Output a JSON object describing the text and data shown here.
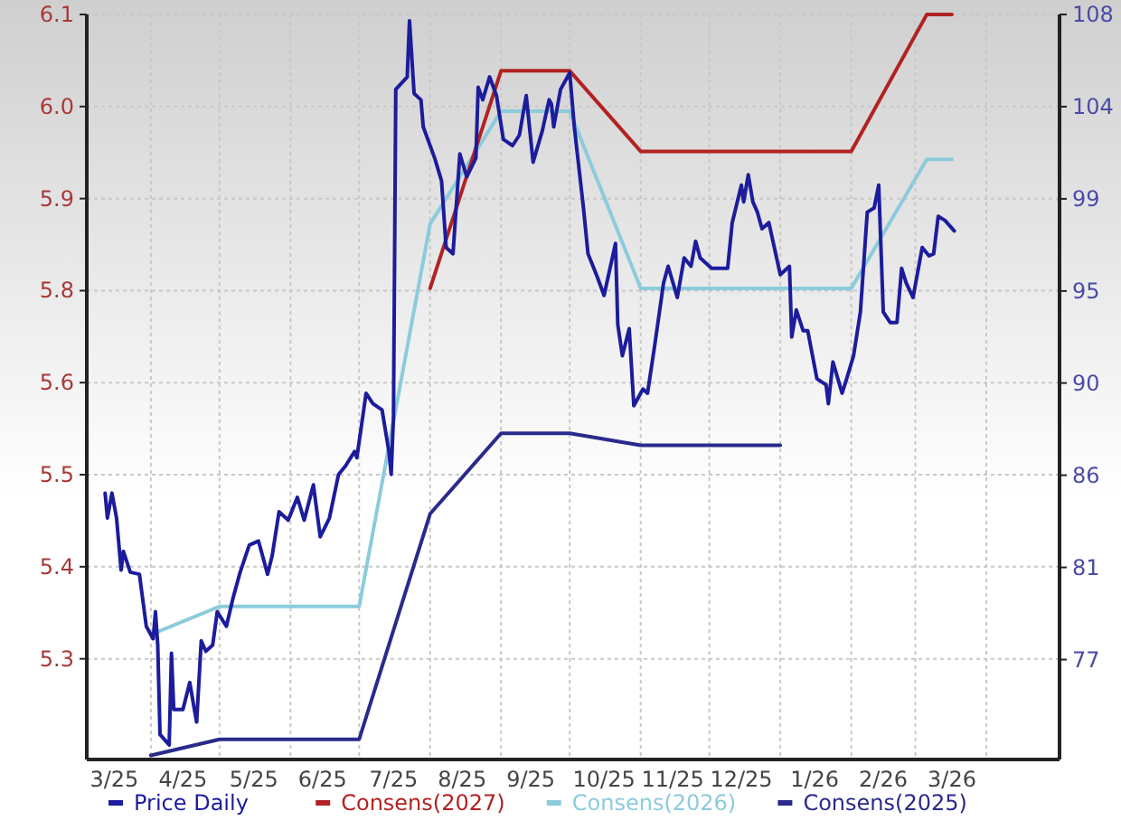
{
  "chart_data": {
    "type": "line",
    "xlim": [
      "2025-03-04",
      "2026-05-03"
    ],
    "xticks": [
      {
        "value": "2025-03-16",
        "label": "3/25"
      },
      {
        "value": "2025-04-01",
        "label": null
      },
      {
        "value": "2025-04-15",
        "label": "4/25"
      },
      {
        "value": "2025-05-01",
        "label": null
      },
      {
        "value": "2025-05-16",
        "label": "5/25"
      },
      {
        "value": "2025-06-01",
        "label": null
      },
      {
        "value": "2025-06-15",
        "label": "6/25"
      },
      {
        "value": "2025-07-01",
        "label": null
      },
      {
        "value": "2025-07-16",
        "label": "7/25"
      },
      {
        "value": "2025-08-01",
        "label": null
      },
      {
        "value": "2025-08-15",
        "label": "8/25"
      },
      {
        "value": "2025-09-01",
        "label": null
      },
      {
        "value": "2025-09-14",
        "label": "9/25"
      },
      {
        "value": "2025-10-01",
        "label": null
      },
      {
        "value": "2025-10-16",
        "label": "10/25"
      },
      {
        "value": "2025-11-01",
        "label": null
      },
      {
        "value": "2025-11-15",
        "label": "11/25"
      },
      {
        "value": "2025-12-01",
        "label": null
      },
      {
        "value": "2025-12-15",
        "label": "12/25"
      },
      {
        "value": "2026-01-01",
        "label": null
      },
      {
        "value": "2026-01-16",
        "label": "1/26"
      },
      {
        "value": "2026-02-01",
        "label": null
      },
      {
        "value": "2026-02-15",
        "label": "2/26"
      },
      {
        "value": "2026-03-01",
        "label": null
      },
      {
        "value": "2026-03-17",
        "label": "3/26"
      },
      {
        "value": "2026-04-01",
        "label": null
      }
    ],
    "ylim": [
      5.175,
      6.1
    ],
    "yticks": [
      5.3,
      {
        "value": 5.4143,
        "label": "5.4"
      },
      {
        "value": 5.5286,
        "label": "5.5"
      },
      {
        "value": 5.6429,
        "label": "5.6"
      },
      {
        "value": 5.7571,
        "label": "5.8"
      },
      {
        "value": 5.8714,
        "label": "5.9"
      },
      {
        "value": 5.9857,
        "label": "6.0"
      },
      6.1
    ],
    "y2lim": [
      72.2,
      108
    ],
    "y2ticks": [
      77,
      {
        "value": 81.43,
        "label": "81"
      },
      {
        "value": 85.86,
        "label": "86"
      },
      {
        "value": 90.29,
        "label": "90"
      },
      {
        "value": 94.71,
        "label": "95"
      },
      {
        "value": 99.14,
        "label": "99"
      },
      {
        "value": 103.57,
        "label": "104"
      },
      108
    ],
    "grid": true,
    "legend": "bottom",
    "series": [
      {
        "name": "Price Daily",
        "color": "#1c1c9c",
        "axis": "y2",
        "x": [
          "2025-03-12",
          "2025-03-13",
          "2025-03-15",
          "2025-03-17",
          "2025-03-19",
          "2025-03-20",
          "2025-03-23",
          "2025-03-27",
          "2025-03-30",
          "2025-04-02",
          "2025-04-03",
          "2025-04-04",
          "2025-04-05",
          "2025-04-09",
          "2025-04-10",
          "2025-04-11",
          "2025-04-15",
          "2025-04-18",
          "2025-04-20",
          "2025-04-21",
          "2025-04-23",
          "2025-04-25",
          "2025-04-28",
          "2025-04-30",
          "2025-05-04",
          "2025-05-07",
          "2025-05-10",
          "2025-05-14",
          "2025-05-18",
          "2025-05-22",
          "2025-05-24",
          "2025-05-27",
          "2025-05-31",
          "2025-06-04",
          "2025-06-07",
          "2025-06-11",
          "2025-06-14",
          "2025-06-18",
          "2025-06-22",
          "2025-06-25",
          "2025-06-29",
          "2025-06-30",
          "2025-07-03",
          "2025-07-04",
          "2025-07-07",
          "2025-07-11",
          "2025-07-14",
          "2025-07-15",
          "2025-07-16",
          "2025-07-17",
          "2025-07-22",
          "2025-07-23",
          "2025-07-25",
          "2025-07-28",
          "2025-07-29",
          "2025-08-03",
          "2025-08-06",
          "2025-08-08",
          "2025-08-11",
          "2025-08-14",
          "2025-08-17",
          "2025-08-21",
          "2025-08-22",
          "2025-08-24",
          "2025-08-27",
          "2025-08-30",
          "2025-09-02",
          "2025-09-06",
          "2025-09-09",
          "2025-09-12",
          "2025-09-15",
          "2025-09-19",
          "2025-09-22",
          "2025-09-23",
          "2025-09-24",
          "2025-09-27",
          "2025-10-01",
          "2025-10-03",
          "2025-10-07",
          "2025-10-09",
          "2025-10-13",
          "2025-10-16",
          "2025-10-21",
          "2025-10-22",
          "2025-10-24",
          "2025-10-27",
          "2025-10-29",
          "2025-11-02",
          "2025-11-04",
          "2025-11-07",
          "2025-11-11",
          "2025-11-13",
          "2025-11-17",
          "2025-11-20",
          "2025-11-23",
          "2025-11-25",
          "2025-11-27",
          "2025-12-02",
          "2025-12-09",
          "2025-12-11",
          "2025-12-15",
          "2025-12-16",
          "2025-12-18",
          "2025-12-20",
          "2025-12-22",
          "2025-12-24",
          "2025-12-27",
          "2026-01-01",
          "2026-01-05",
          "2026-01-06",
          "2026-01-08",
          "2026-01-11",
          "2026-01-13",
          "2026-01-17",
          "2026-01-21",
          "2026-01-22",
          "2026-01-24",
          "2026-01-28",
          "2026-01-30",
          "2026-02-02",
          "2026-02-05",
          "2026-02-08",
          "2026-02-11",
          "2026-02-13",
          "2026-02-15",
          "2026-02-18",
          "2026-02-21",
          "2026-02-23",
          "2026-02-25",
          "2026-02-28",
          "2026-03-04",
          "2026-03-07",
          "2026-03-09",
          "2026-03-11",
          "2026-03-14",
          "2026-03-18"
        ],
        "values": [
          85.0,
          83.8,
          85.0,
          83.8,
          81.3,
          82.2,
          81.2,
          81.1,
          78.6,
          78.0,
          79.3,
          77.7,
          73.4,
          72.9,
          77.3,
          74.6,
          74.6,
          75.9,
          74.6,
          74.0,
          77.9,
          77.4,
          77.7,
          79.3,
          78.6,
          80.0,
          81.2,
          82.5,
          82.7,
          81.1,
          82.0,
          84.1,
          83.7,
          84.8,
          83.7,
          85.4,
          82.9,
          83.8,
          85.9,
          86.3,
          87.0,
          86.7,
          89.0,
          89.8,
          89.3,
          89.0,
          87.0,
          85.9,
          88.7,
          104.4,
          105.0,
          107.7,
          104.2,
          103.9,
          102.6,
          101.1,
          100.0,
          96.8,
          96.5,
          101.3,
          100.2,
          101.1,
          104.5,
          103.9,
          105.0,
          104.1,
          102.0,
          101.7,
          102.2,
          104.1,
          100.9,
          102.4,
          103.9,
          103.7,
          102.6,
          104.4,
          105.2,
          102.6,
          98.7,
          96.5,
          95.4,
          94.5,
          97.0,
          93.1,
          91.6,
          92.9,
          89.2,
          90.0,
          89.8,
          92.0,
          95.1,
          95.9,
          94.4,
          96.3,
          95.9,
          97.1,
          96.3,
          95.8,
          95.8,
          98.0,
          99.8,
          99.0,
          100.3,
          99.0,
          98.5,
          97.7,
          98.0,
          95.5,
          95.9,
          92.5,
          93.8,
          92.8,
          92.8,
          90.5,
          90.2,
          89.3,
          91.3,
          89.8,
          90.5,
          91.6,
          93.7,
          98.5,
          98.7,
          99.8,
          93.7,
          93.2,
          93.2,
          95.8,
          95.1,
          94.4,
          96.8,
          96.4,
          96.5,
          98.3,
          98.1,
          97.6
        ]
      },
      {
        "name": "Consens(2027)",
        "color": "#b22222",
        "x": [
          "2025-08-01",
          "2025-09-01",
          "2025-10-01",
          "2025-11-01",
          "2026-02-01",
          "2026-03-06",
          "2026-03-17"
        ],
        "values": [
          5.76,
          6.03,
          6.03,
          5.93,
          5.93,
          6.1,
          6.1
        ]
      },
      {
        "name": "Consens(2026)",
        "color": "#8ccbdc",
        "x": [
          "2025-04-01",
          "2025-05-01",
          "2025-07-01",
          "2025-08-01",
          "2025-09-01",
          "2025-10-01",
          "2025-11-01",
          "2026-02-01",
          "2026-03-06",
          "2026-03-17"
        ],
        "values": [
          5.33,
          5.365,
          5.365,
          5.84,
          5.98,
          5.98,
          5.76,
          5.76,
          5.92,
          5.92
        ]
      },
      {
        "name": "Consens(2025)",
        "color": "#2a2a8c",
        "x": [
          "2025-04-01",
          "2025-05-01",
          "2025-07-01",
          "2025-08-01",
          "2025-09-01",
          "2025-10-01",
          "2025-11-01",
          "2026-01-01"
        ],
        "values": [
          5.18,
          5.2,
          5.2,
          5.48,
          5.58,
          5.58,
          5.565,
          5.565
        ]
      }
    ]
  }
}
